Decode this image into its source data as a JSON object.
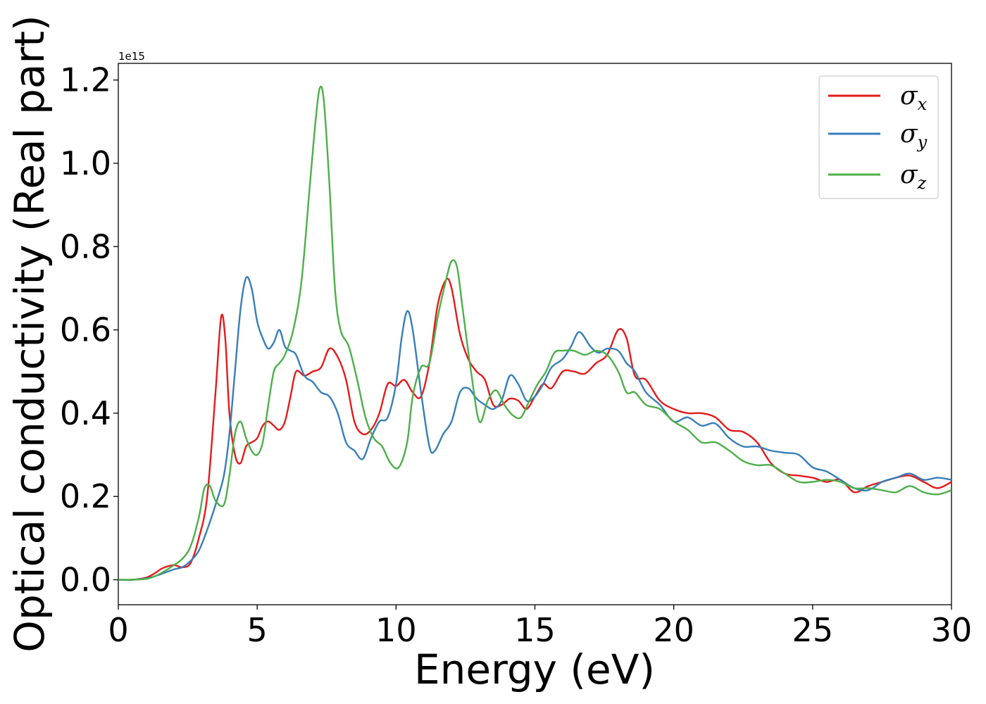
{
  "chart_data": {
    "type": "line",
    "xlabel": "Energy (eV)",
    "ylabel": "Optical conductivity (Real part)",
    "offset_text": "1e15",
    "xlim": [
      0,
      30
    ],
    "ylim": [
      -0.06,
      1.24
    ],
    "xticks": [
      0,
      5,
      10,
      15,
      20,
      25,
      30
    ],
    "xtick_labels": [
      "0",
      "5",
      "10",
      "15",
      "20",
      "25",
      "30"
    ],
    "yticks": [
      0.0,
      0.2,
      0.4,
      0.6,
      0.8,
      1.0,
      1.2
    ],
    "ytick_labels": [
      "0.0",
      "0.2",
      "0.4",
      "0.6",
      "0.8",
      "1.0",
      "1.2"
    ],
    "grid": false,
    "legend_position": "top-right",
    "series": [
      {
        "name": "σx",
        "legend_symbol": "σ",
        "legend_sub": "x",
        "color": "#e41a1c",
        "x": [
          0,
          0.5,
          1.0,
          1.3,
          1.6,
          2.0,
          2.3,
          2.6,
          2.9,
          3.2,
          3.5,
          3.7,
          3.85,
          4.0,
          4.2,
          4.4,
          4.6,
          4.8,
          5.0,
          5.2,
          5.4,
          5.6,
          5.8,
          6.0,
          6.2,
          6.4,
          6.7,
          7.0,
          7.3,
          7.6,
          7.9,
          8.2,
          8.5,
          8.8,
          9.1,
          9.4,
          9.7,
          10.0,
          10.3,
          10.6,
          10.9,
          11.2,
          11.5,
          11.8,
          12.0,
          12.3,
          12.6,
          12.9,
          13.2,
          13.5,
          13.8,
          14.1,
          14.4,
          14.7,
          15.0,
          15.3,
          15.6,
          16.0,
          16.4,
          16.8,
          17.2,
          17.6,
          18.0,
          18.3,
          18.6,
          19.0,
          19.5,
          20.0,
          20.5,
          21.0,
          21.5,
          22.0,
          22.5,
          23.0,
          23.5,
          24.0,
          24.5,
          25.0,
          25.5,
          26.0,
          26.5,
          27.0,
          27.5,
          28.0,
          28.5,
          29.0,
          29.5,
          30.0
        ],
        "y": [
          0.0,
          0.0,
          0.005,
          0.015,
          0.028,
          0.035,
          0.03,
          0.04,
          0.1,
          0.2,
          0.45,
          0.63,
          0.58,
          0.4,
          0.3,
          0.28,
          0.32,
          0.33,
          0.34,
          0.37,
          0.38,
          0.37,
          0.36,
          0.38,
          0.44,
          0.5,
          0.49,
          0.5,
          0.51,
          0.555,
          0.535,
          0.48,
          0.38,
          0.35,
          0.36,
          0.4,
          0.47,
          0.465,
          0.48,
          0.45,
          0.44,
          0.52,
          0.66,
          0.72,
          0.7,
          0.59,
          0.53,
          0.5,
          0.48,
          0.42,
          0.42,
          0.435,
          0.43,
          0.41,
          0.44,
          0.47,
          0.46,
          0.5,
          0.5,
          0.495,
          0.52,
          0.54,
          0.6,
          0.58,
          0.49,
          0.48,
          0.43,
          0.41,
          0.4,
          0.4,
          0.39,
          0.36,
          0.355,
          0.33,
          0.28,
          0.255,
          0.25,
          0.245,
          0.235,
          0.24,
          0.21,
          0.225,
          0.235,
          0.245,
          0.25,
          0.235,
          0.22,
          0.235
        ]
      },
      {
        "name": "σy",
        "legend_symbol": "σ",
        "legend_sub": "y",
        "color": "#377eb8",
        "x": [
          0,
          0.5,
          1.0,
          1.3,
          1.6,
          2.0,
          2.3,
          2.6,
          2.9,
          3.2,
          3.5,
          3.8,
          4.0,
          4.2,
          4.4,
          4.6,
          4.8,
          5.0,
          5.2,
          5.4,
          5.6,
          5.8,
          6.0,
          6.2,
          6.4,
          6.7,
          7.0,
          7.3,
          7.6,
          7.9,
          8.2,
          8.5,
          8.8,
          9.1,
          9.4,
          9.7,
          10.0,
          10.2,
          10.4,
          10.6,
          10.9,
          11.2,
          11.4,
          11.7,
          12.0,
          12.3,
          12.6,
          12.9,
          13.2,
          13.5,
          13.8,
          14.1,
          14.4,
          14.7,
          15.0,
          15.3,
          15.6,
          16.0,
          16.3,
          16.6,
          17.0,
          17.3,
          17.6,
          18.0,
          18.3,
          18.6,
          19.0,
          19.5,
          20.0,
          20.5,
          21.0,
          21.5,
          22.0,
          22.5,
          23.0,
          23.5,
          24.0,
          24.5,
          25.0,
          25.5,
          26.0,
          26.5,
          27.0,
          27.5,
          28.0,
          28.5,
          29.0,
          29.5,
          30.0
        ],
        "y": [
          0.0,
          0.0,
          0.003,
          0.008,
          0.015,
          0.025,
          0.03,
          0.045,
          0.07,
          0.12,
          0.18,
          0.25,
          0.35,
          0.5,
          0.65,
          0.725,
          0.7,
          0.62,
          0.58,
          0.555,
          0.57,
          0.6,
          0.56,
          0.55,
          0.54,
          0.49,
          0.475,
          0.45,
          0.44,
          0.4,
          0.33,
          0.31,
          0.29,
          0.34,
          0.38,
          0.39,
          0.47,
          0.58,
          0.645,
          0.6,
          0.45,
          0.32,
          0.31,
          0.35,
          0.38,
          0.45,
          0.46,
          0.435,
          0.42,
          0.41,
          0.43,
          0.49,
          0.47,
          0.43,
          0.44,
          0.47,
          0.51,
          0.53,
          0.56,
          0.595,
          0.56,
          0.545,
          0.555,
          0.55,
          0.52,
          0.5,
          0.45,
          0.42,
          0.38,
          0.39,
          0.37,
          0.375,
          0.34,
          0.32,
          0.32,
          0.31,
          0.305,
          0.3,
          0.27,
          0.26,
          0.24,
          0.22,
          0.215,
          0.235,
          0.245,
          0.255,
          0.24,
          0.245,
          0.24
        ]
      },
      {
        "name": "σz",
        "legend_symbol": "σ",
        "legend_sub": "z",
        "color": "#4daf4a",
        "x": [
          0,
          0.5,
          1.0,
          1.3,
          1.6,
          2.0,
          2.3,
          2.6,
          2.9,
          3.1,
          3.3,
          3.5,
          3.8,
          4.0,
          4.2,
          4.4,
          4.6,
          4.8,
          5.0,
          5.2,
          5.4,
          5.6,
          5.8,
          6.0,
          6.3,
          6.6,
          6.9,
          7.1,
          7.25,
          7.4,
          7.6,
          7.8,
          8.0,
          8.3,
          8.6,
          8.9,
          9.2,
          9.5,
          9.8,
          10.1,
          10.4,
          10.6,
          10.9,
          11.2,
          11.5,
          11.8,
          12.0,
          12.2,
          12.4,
          12.7,
          13.0,
          13.3,
          13.6,
          13.9,
          14.2,
          14.5,
          14.8,
          15.1,
          15.4,
          15.7,
          16.0,
          16.4,
          16.8,
          17.2,
          17.6,
          18.0,
          18.3,
          18.6,
          19.0,
          19.5,
          20.0,
          20.5,
          21.0,
          21.5,
          22.0,
          22.5,
          23.0,
          23.5,
          24.0,
          24.5,
          25.0,
          25.5,
          26.0,
          26.5,
          27.0,
          27.5,
          28.0,
          28.5,
          29.0,
          29.5,
          30.0
        ],
        "y": [
          0.0,
          0.0,
          0.002,
          0.008,
          0.018,
          0.035,
          0.05,
          0.08,
          0.15,
          0.22,
          0.225,
          0.19,
          0.18,
          0.25,
          0.35,
          0.38,
          0.34,
          0.31,
          0.3,
          0.33,
          0.42,
          0.5,
          0.52,
          0.54,
          0.6,
          0.72,
          0.95,
          1.1,
          1.18,
          1.15,
          0.95,
          0.7,
          0.6,
          0.56,
          0.48,
          0.39,
          0.34,
          0.32,
          0.28,
          0.27,
          0.33,
          0.44,
          0.51,
          0.52,
          0.63,
          0.72,
          0.765,
          0.75,
          0.65,
          0.5,
          0.38,
          0.43,
          0.455,
          0.42,
          0.395,
          0.39,
          0.43,
          0.47,
          0.5,
          0.545,
          0.55,
          0.55,
          0.54,
          0.55,
          0.54,
          0.5,
          0.45,
          0.45,
          0.42,
          0.41,
          0.38,
          0.36,
          0.33,
          0.33,
          0.31,
          0.285,
          0.275,
          0.275,
          0.255,
          0.235,
          0.235,
          0.24,
          0.235,
          0.22,
          0.22,
          0.215,
          0.21,
          0.225,
          0.21,
          0.205,
          0.215
        ]
      }
    ]
  }
}
